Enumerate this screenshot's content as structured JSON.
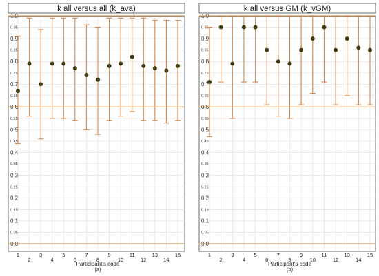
{
  "chart_data": [
    {
      "type": "scatter",
      "title": "k all versus all (k_ava)",
      "xlabel": "Participant's code",
      "sublabel": "(a)",
      "ylim": [
        0,
        1
      ],
      "ytick_step": 0.05,
      "reference_line": 0.6,
      "x": [
        1,
        2,
        3,
        4,
        5,
        6,
        7,
        8,
        9,
        10,
        11,
        12,
        13,
        14,
        15
      ],
      "values": [
        0.67,
        0.79,
        0.7,
        0.79,
        0.79,
        0.77,
        0.74,
        0.72,
        0.78,
        0.79,
        0.82,
        0.78,
        0.77,
        0.76,
        0.78
      ],
      "error_low": [
        0.44,
        0.56,
        0.46,
        0.55,
        0.55,
        0.54,
        0.5,
        0.48,
        0.54,
        0.56,
        0.58,
        0.54,
        0.54,
        0.53,
        0.54
      ],
      "error_high": [
        0.91,
        0.99,
        0.94,
        0.99,
        0.99,
        0.99,
        0.96,
        0.95,
        0.99,
        0.99,
        0.99,
        0.99,
        0.98,
        0.98,
        0.98
      ],
      "grid": true
    },
    {
      "type": "scatter",
      "title": "k all versus GM (k_vGM)",
      "xlabel": "Participant's code",
      "sublabel": "(b)",
      "ylim": [
        0,
        1
      ],
      "ytick_step": 0.05,
      "reference_line": 0.6,
      "x": [
        1,
        2,
        3,
        4,
        5,
        6,
        7,
        8,
        9,
        10,
        11,
        12,
        13,
        14,
        15
      ],
      "values": [
        0.71,
        0.95,
        0.79,
        0.95,
        0.95,
        0.85,
        0.8,
        0.79,
        0.85,
        0.9,
        0.95,
        0.85,
        0.9,
        0.86,
        0.85
      ],
      "error_low": [
        0.47,
        0.71,
        0.55,
        0.71,
        0.71,
        0.61,
        0.56,
        0.55,
        0.61,
        0.66,
        0.71,
        0.61,
        0.65,
        0.61,
        0.61
      ],
      "error_high": [
        0.95,
        1.0,
        1.0,
        1.0,
        1.0,
        1.0,
        1.0,
        1.0,
        1.0,
        1.0,
        1.0,
        1.0,
        1.0,
        1.0,
        1.0
      ],
      "grid": true
    }
  ],
  "colors": {
    "point": "#3d3d10",
    "error_bar": "#d4874a",
    "reference_line": "#c9a06a",
    "grid": "#e8dada",
    "frame": "#6d6d6d"
  }
}
